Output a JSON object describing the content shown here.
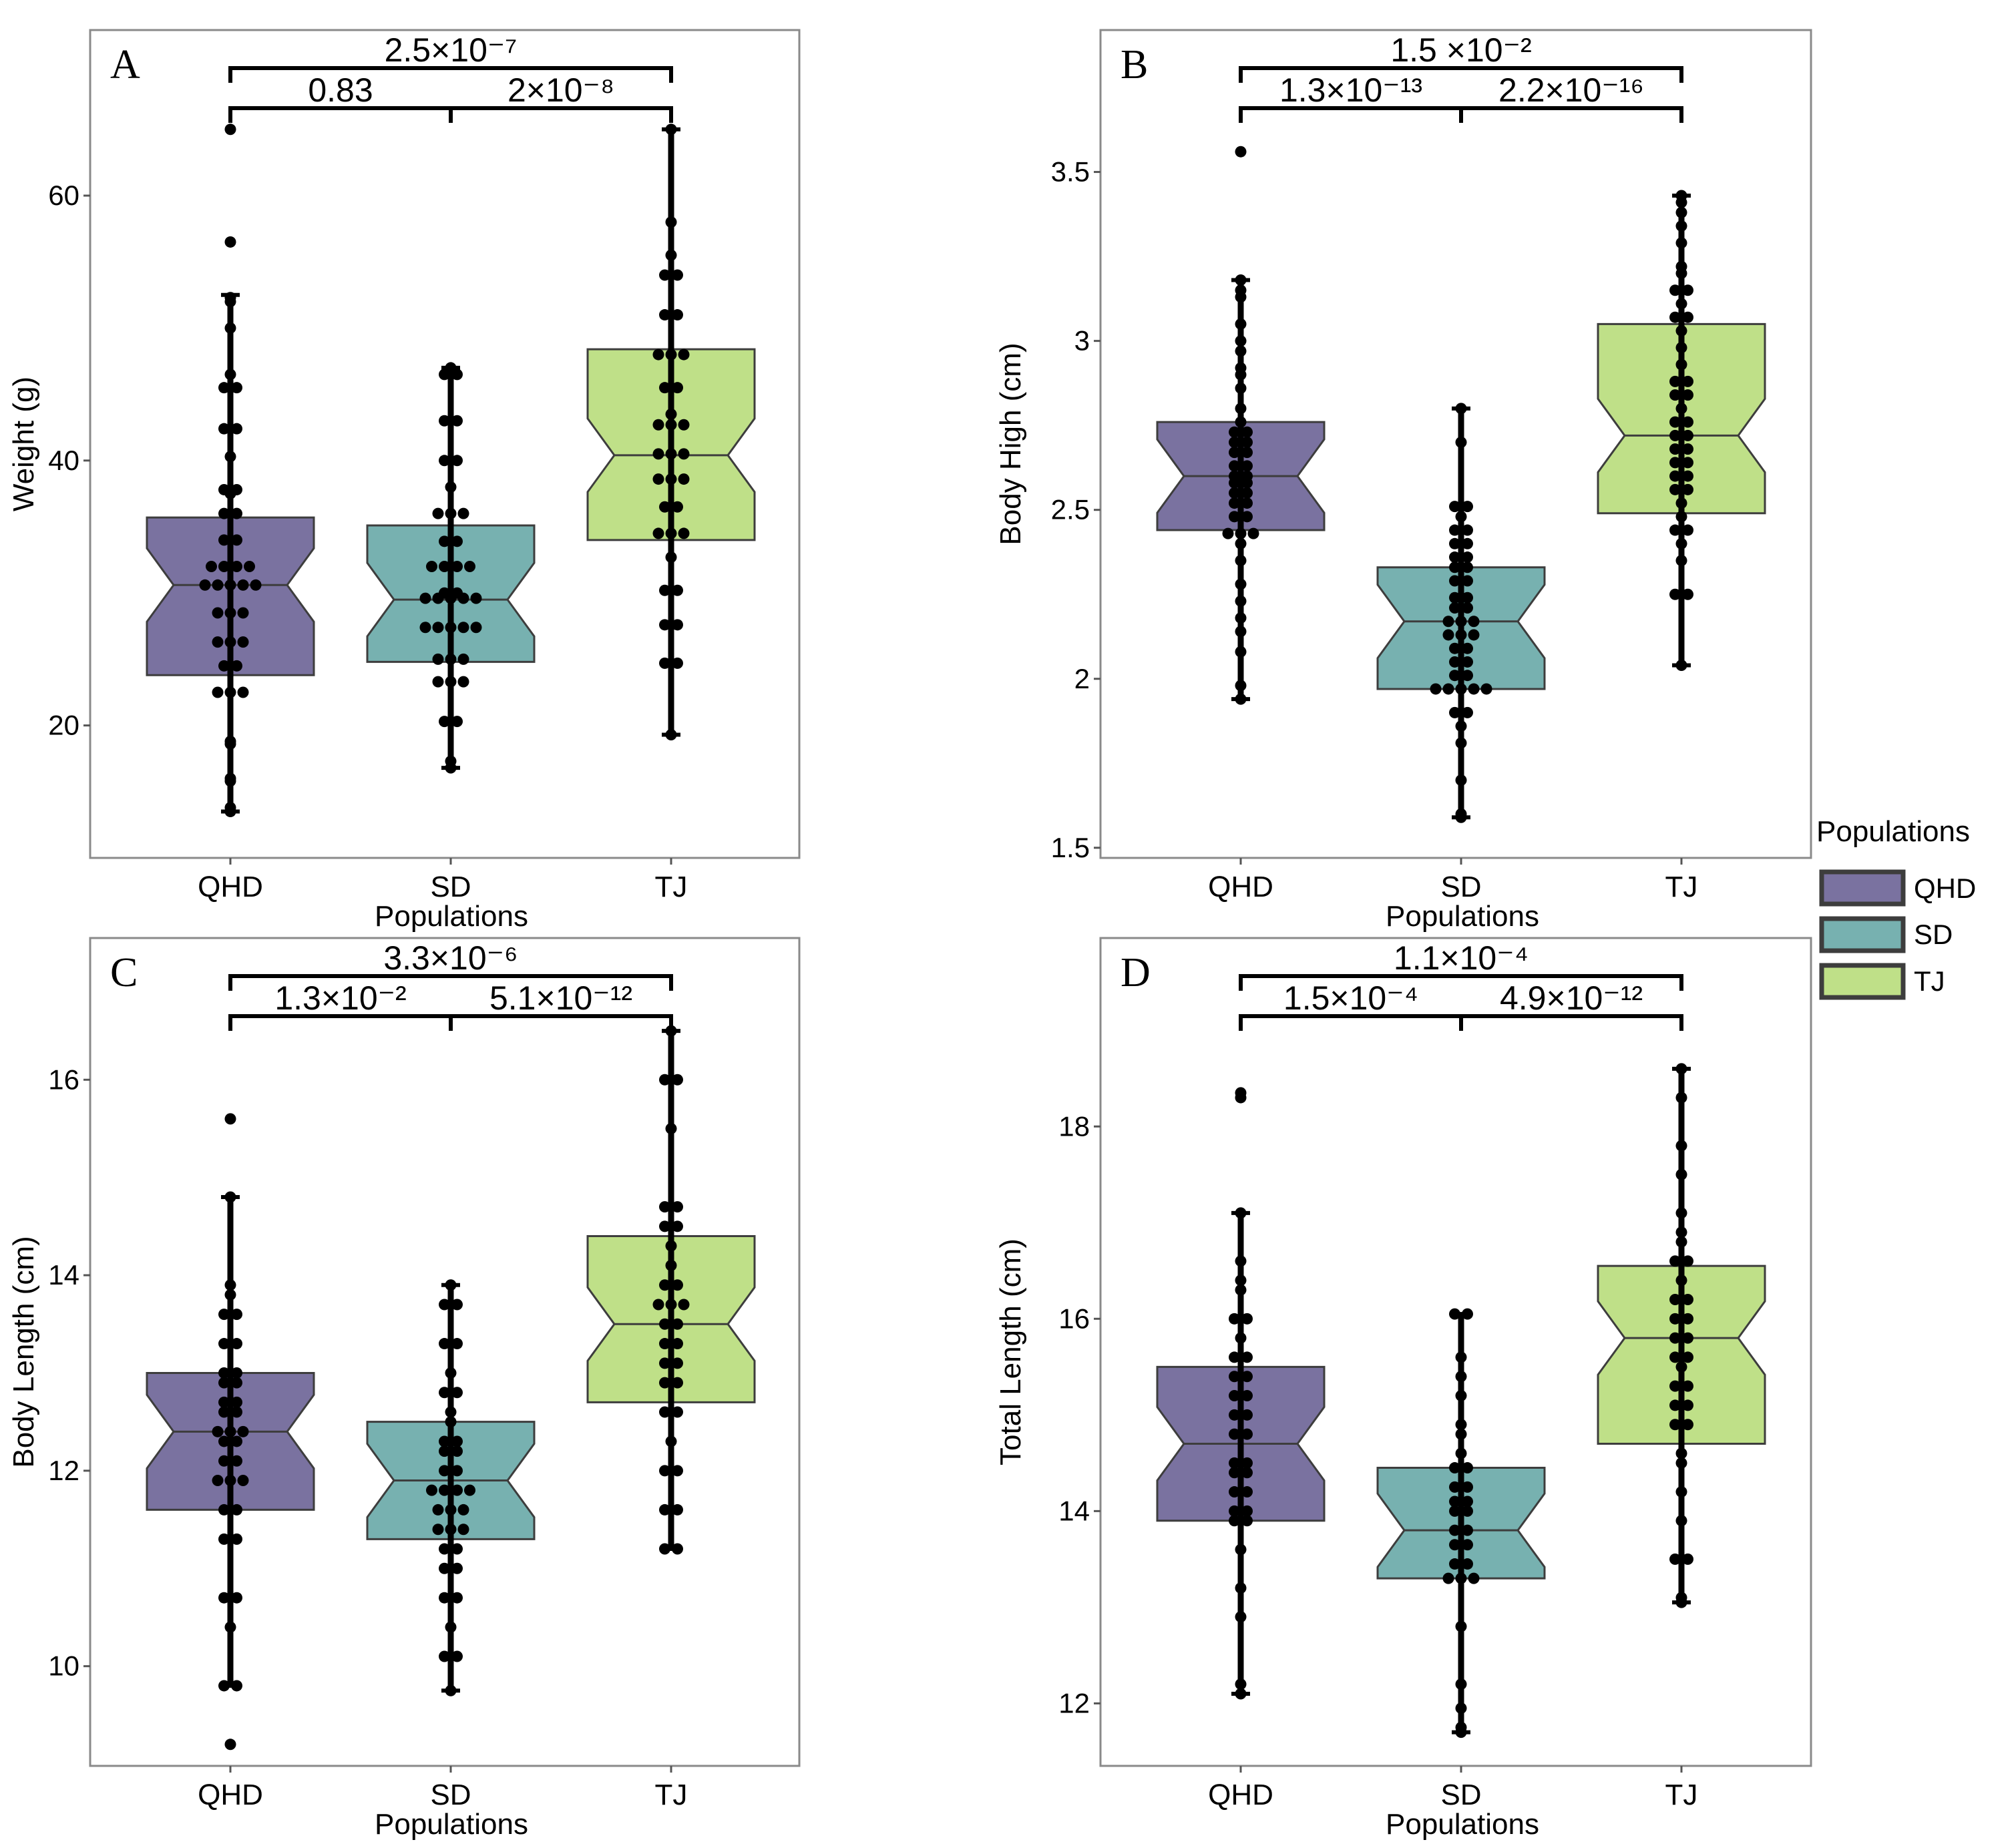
{
  "legend": {
    "title": "Populations",
    "items": [
      {
        "label": "QHD",
        "color": "#7a72a0"
      },
      {
        "label": "SD",
        "color": "#77b1b0"
      },
      {
        "label": "TJ",
        "color": "#bfe088"
      }
    ]
  },
  "chart_data": [
    {
      "panel": "A",
      "type": "boxplot",
      "notched": true,
      "xlabel": "Populations",
      "ylabel": "Weight (g)",
      "categories": [
        "QHD",
        "SD",
        "TJ"
      ],
      "yticks": [
        20,
        40,
        60
      ],
      "ylim": [
        10,
        72.5
      ],
      "boxes": [
        {
          "name": "QHD",
          "q1": 23.8,
          "median": 30.6,
          "q3": 35.7,
          "whisker_low": 13.5,
          "whisker_high": 52.5,
          "points": [
            13.5,
            13.8,
            15.8,
            16.0,
            18.6,
            18.8,
            22.5,
            22.5,
            22.5,
            24.5,
            24.5,
            26.3,
            26.3,
            26.3,
            28.5,
            28.5,
            28.5,
            30.6,
            30.6,
            30.6,
            30.6,
            30.6,
            32.0,
            32.0,
            32.0,
            32.0,
            34.0,
            34.0,
            36.0,
            36.0,
            37.5,
            37.8,
            37.8,
            40.3,
            42.4,
            42.4,
            45.5,
            45.5,
            46.5,
            50.0,
            52.0,
            52.3,
            56.5,
            65.0
          ]
        },
        {
          "name": "SD",
          "q1": 24.8,
          "median": 29.5,
          "q3": 35.1,
          "whisker_low": 16.8,
          "whisker_high": 47.0,
          "points": [
            16.8,
            17.3,
            20.3,
            20.3,
            23.3,
            23.3,
            23.3,
            25.0,
            25.0,
            25.0,
            27.4,
            27.4,
            27.4,
            27.4,
            27.4,
            29.6,
            29.6,
            29.6,
            29.6,
            29.6,
            30.0,
            30.0,
            32.0,
            32.0,
            32.0,
            32.0,
            33.9,
            33.9,
            36.0,
            36.0,
            36.0,
            38.0,
            40.0,
            40.0,
            43.0,
            43.0,
            46.5,
            46.5,
            47.0
          ]
        },
        {
          "name": "TJ",
          "q1": 34.0,
          "median": 40.4,
          "q3": 48.4,
          "whisker_low": 19.3,
          "whisker_high": 65.0,
          "points": [
            19.3,
            24.7,
            24.7,
            27.6,
            27.6,
            30.2,
            30.2,
            32.7,
            34.5,
            34.5,
            34.5,
            36.5,
            36.5,
            38.6,
            38.6,
            38.6,
            40.5,
            40.5,
            40.5,
            42.7,
            42.7,
            42.7,
            43.5,
            45.5,
            45.5,
            48.0,
            48.0,
            48.0,
            51.0,
            51.0,
            54.0,
            54.0,
            55.5,
            58.0,
            65.0
          ]
        }
      ],
      "comparisons": [
        {
          "from": "QHD",
          "to": "TJ",
          "label": "2.5×10⁻⁷"
        },
        {
          "from": "QHD",
          "to": "SD",
          "label": "0.83"
        },
        {
          "from": "SD",
          "to": "TJ",
          "label": "2×10⁻⁸"
        }
      ]
    },
    {
      "panel": "B",
      "type": "boxplot",
      "notched": true,
      "xlabel": "Populations",
      "ylabel": "Body High (cm)",
      "categories": [
        "QHD",
        "SD",
        "TJ"
      ],
      "yticks": [
        1.5,
        2.0,
        2.5,
        3.0,
        3.5
      ],
      "ylim": [
        1.47,
        3.92
      ],
      "boxes": [
        {
          "name": "QHD",
          "q1": 2.44,
          "median": 2.6,
          "q3": 2.76,
          "whisker_low": 1.94,
          "whisker_high": 3.18,
          "points": [
            1.94,
            1.98,
            2.08,
            2.14,
            2.18,
            2.23,
            2.28,
            2.35,
            2.4,
            2.43,
            2.43,
            2.43,
            2.48,
            2.48,
            2.52,
            2.52,
            2.55,
            2.55,
            2.58,
            2.58,
            2.6,
            2.6,
            2.63,
            2.63,
            2.67,
            2.67,
            2.7,
            2.7,
            2.73,
            2.73,
            2.76,
            2.8,
            2.86,
            2.9,
            2.92,
            2.97,
            3.0,
            3.05,
            3.13,
            3.15,
            3.18,
            3.56
          ]
        },
        {
          "name": "SD",
          "q1": 1.97,
          "median": 2.17,
          "q3": 2.33,
          "whisker_low": 1.59,
          "whisker_high": 2.8,
          "points": [
            1.59,
            1.6,
            1.7,
            1.81,
            1.86,
            1.9,
            1.9,
            1.97,
            1.97,
            1.97,
            1.97,
            1.97,
            2.01,
            2.01,
            2.05,
            2.05,
            2.09,
            2.09,
            2.13,
            2.13,
            2.13,
            2.17,
            2.17,
            2.17,
            2.21,
            2.21,
            2.24,
            2.24,
            2.29,
            2.29,
            2.33,
            2.33,
            2.36,
            2.36,
            2.4,
            2.4,
            2.44,
            2.44,
            2.48,
            2.51,
            2.51,
            2.7,
            2.8
          ]
        },
        {
          "name": "TJ",
          "q1": 2.49,
          "median": 2.72,
          "q3": 3.05,
          "whisker_low": 2.04,
          "whisker_high": 3.43,
          "points": [
            2.04,
            2.25,
            2.25,
            2.35,
            2.4,
            2.44,
            2.44,
            2.48,
            2.52,
            2.56,
            2.56,
            2.6,
            2.6,
            2.64,
            2.64,
            2.68,
            2.68,
            2.72,
            2.72,
            2.76,
            2.76,
            2.8,
            2.84,
            2.84,
            2.88,
            2.88,
            2.93,
            2.98,
            3.03,
            3.07,
            3.07,
            3.11,
            3.15,
            3.15,
            3.2,
            3.22,
            3.29,
            3.34,
            3.38,
            3.41,
            3.43
          ]
        }
      ],
      "comparisons": [
        {
          "from": "QHD",
          "to": "TJ",
          "label": "1.5 ×10⁻²"
        },
        {
          "from": "QHD",
          "to": "SD",
          "label": "1.3×10⁻¹³"
        },
        {
          "from": "SD",
          "to": "TJ",
          "label": "2.2×10⁻¹⁶"
        }
      ]
    },
    {
      "panel": "C",
      "type": "boxplot",
      "notched": true,
      "xlabel": "Populations",
      "ylabel": "Body Length (cm)",
      "categories": [
        "QHD",
        "SD",
        "TJ"
      ],
      "yticks": [
        10,
        12,
        14,
        16
      ],
      "ylim": [
        8.98,
        17.45
      ],
      "boxes": [
        {
          "name": "QHD",
          "q1": 11.6,
          "median": 12.4,
          "q3": 13.0,
          "whisker_low": 9.8,
          "whisker_high": 14.8,
          "points": [
            9.2,
            9.8,
            9.8,
            10.4,
            10.7,
            10.7,
            11.3,
            11.3,
            11.6,
            11.6,
            11.9,
            11.9,
            11.9,
            12.1,
            12.1,
            12.3,
            12.3,
            12.4,
            12.4,
            12.4,
            12.6,
            12.6,
            12.7,
            12.7,
            12.9,
            12.9,
            13.0,
            13.0,
            13.3,
            13.3,
            13.6,
            13.6,
            13.8,
            13.9,
            14.8,
            15.6
          ]
        },
        {
          "name": "SD",
          "q1": 11.3,
          "median": 11.9,
          "q3": 12.5,
          "whisker_low": 9.75,
          "whisker_high": 13.9,
          "points": [
            9.75,
            10.1,
            10.1,
            10.4,
            10.7,
            10.7,
            11.0,
            11.0,
            11.2,
            11.2,
            11.4,
            11.4,
            11.4,
            11.6,
            11.6,
            11.6,
            11.8,
            11.8,
            11.8,
            11.8,
            12.0,
            12.0,
            12.2,
            12.2,
            12.3,
            12.3,
            12.5,
            12.6,
            12.8,
            12.8,
            13.0,
            13.3,
            13.3,
            13.7,
            13.7,
            13.9
          ]
        },
        {
          "name": "TJ",
          "q1": 12.7,
          "median": 13.5,
          "q3": 14.4,
          "whisker_low": 11.2,
          "whisker_high": 16.5,
          "points": [
            11.2,
            11.2,
            11.6,
            11.6,
            12.0,
            12.0,
            12.3,
            12.6,
            12.6,
            12.9,
            12.9,
            13.1,
            13.1,
            13.3,
            13.3,
            13.5,
            13.5,
            13.7,
            13.7,
            13.7,
            13.9,
            13.9,
            14.1,
            14.3,
            14.5,
            14.5,
            14.7,
            14.7,
            15.5,
            16.0,
            16.0,
            16.5
          ]
        }
      ],
      "comparisons": [
        {
          "from": "QHD",
          "to": "TJ",
          "label": "3.3×10⁻⁶"
        },
        {
          "from": "QHD",
          "to": "SD",
          "label": "1.3×10⁻²"
        },
        {
          "from": "SD",
          "to": "TJ",
          "label": "5.1×10⁻¹²"
        }
      ]
    },
    {
      "panel": "D",
      "type": "boxplot",
      "notched": true,
      "xlabel": "Populations",
      "ylabel": "Total Length (cm)",
      "categories": [
        "QHD",
        "SD",
        "TJ"
      ],
      "yticks": [
        12,
        14,
        16,
        18
      ],
      "ylim": [
        11.35,
        19.96
      ],
      "boxes": [
        {
          "name": "QHD",
          "q1": 13.9,
          "median": 14.7,
          "q3": 15.5,
          "whisker_low": 12.1,
          "whisker_high": 17.1,
          "points": [
            12.1,
            12.2,
            12.9,
            13.2,
            13.6,
            13.9,
            13.9,
            14.0,
            14.0,
            14.2,
            14.2,
            14.4,
            14.4,
            14.5,
            14.5,
            14.8,
            14.8,
            15.0,
            15.0,
            15.2,
            15.2,
            15.4,
            15.4,
            15.6,
            15.6,
            15.8,
            16.0,
            16.0,
            16.3,
            16.4,
            16.6,
            17.1,
            18.3,
            18.35
          ]
        },
        {
          "name": "SD",
          "q1": 13.3,
          "median": 13.8,
          "q3": 14.45,
          "whisker_low": 11.7,
          "whisker_high": 16.05,
          "points": [
            11.7,
            11.75,
            11.95,
            12.2,
            12.8,
            13.3,
            13.3,
            13.3,
            13.45,
            13.45,
            13.65,
            13.65,
            13.8,
            13.8,
            14.0,
            14.0,
            14.1,
            14.1,
            14.25,
            14.25,
            14.45,
            14.45,
            14.6,
            14.8,
            14.9,
            15.2,
            15.4,
            15.6,
            16.05,
            16.05
          ]
        },
        {
          "name": "TJ",
          "q1": 14.7,
          "median": 15.8,
          "q3": 16.55,
          "whisker_low": 13.05,
          "whisker_high": 18.6,
          "points": [
            13.05,
            13.1,
            13.5,
            13.5,
            13.9,
            14.2,
            14.5,
            14.6,
            14.9,
            14.9,
            15.1,
            15.1,
            15.3,
            15.3,
            15.5,
            15.6,
            15.6,
            15.8,
            15.8,
            16.0,
            16.0,
            16.2,
            16.2,
            16.4,
            16.6,
            16.6,
            16.8,
            16.9,
            17.1,
            17.5,
            17.8,
            18.3,
            18.6
          ]
        }
      ],
      "comparisons": [
        {
          "from": "QHD",
          "to": "TJ",
          "label": "1.1×10⁻⁴"
        },
        {
          "from": "QHD",
          "to": "SD",
          "label": "1.5×10⁻⁴"
        },
        {
          "from": "SD",
          "to": "TJ",
          "label": "4.9×10⁻¹²"
        }
      ]
    }
  ]
}
